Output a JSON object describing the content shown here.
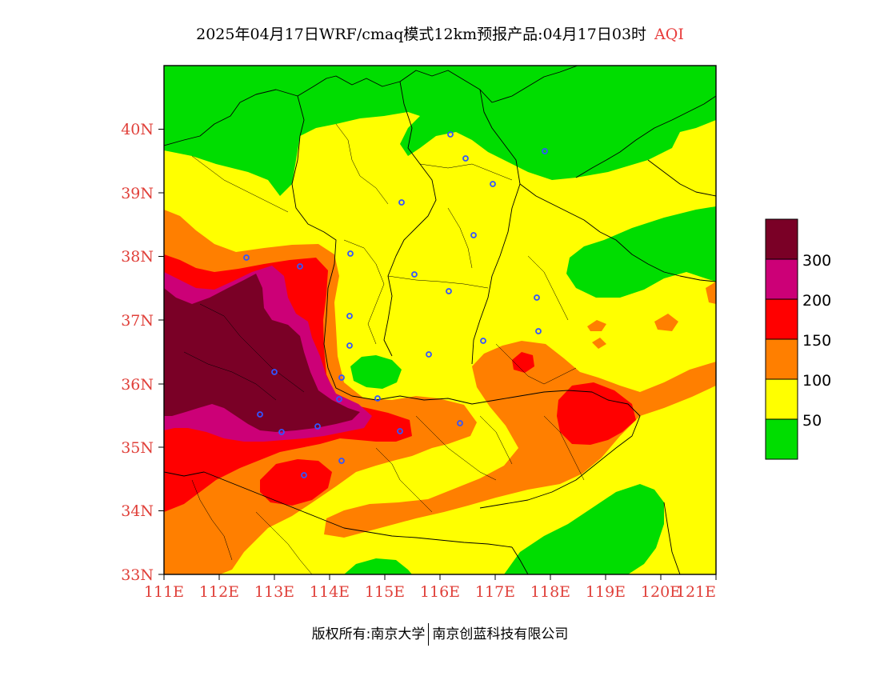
{
  "title": {
    "main": "2025年04月17日WRF/cmaq模式12km预报产品:04月17日03时",
    "variable": "AQI"
  },
  "axes": {
    "lat_labels": [
      "33N",
      "34N",
      "35N",
      "36N",
      "37N",
      "38N",
      "39N",
      "40N"
    ],
    "lon_labels": [
      "111E",
      "112E",
      "113E",
      "114E",
      "115E",
      "116E",
      "117E",
      "118E",
      "119E",
      "120E",
      "121E"
    ],
    "lat_range": [
      33,
      41
    ],
    "lon_range": [
      111,
      121.3
    ]
  },
  "legend": {
    "items": [
      {
        "label": "",
        "color": "#7a0026"
      },
      {
        "label": "300",
        "color": "#cc0077"
      },
      {
        "label": "200",
        "color": "#ff0000"
      },
      {
        "label": "150",
        "color": "#ff7f00"
      },
      {
        "label": "100",
        "color": "#ffff00"
      },
      {
        "label": "50",
        "color": "#00dd00"
      }
    ]
  },
  "colors": {
    "good": "#00dd00",
    "moderate": "#ffff00",
    "usg": "#ff7f00",
    "unhealthy": "#ff0000",
    "very_unhealthy": "#cc0077",
    "hazardous": "#7a0026",
    "city_marker": "#3355ff"
  },
  "copyright": {
    "left": "版权所有:南京大学",
    "right": "南京创蓝科技有限公司"
  }
}
